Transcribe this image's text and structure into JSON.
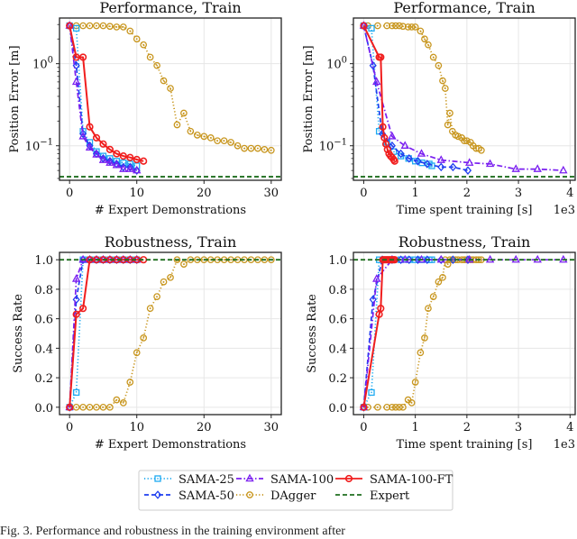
{
  "chart_data": [
    {
      "id": "perf_demos",
      "type": "line",
      "title": "Performance, Train",
      "xlabel": "# Expert Demonstrations",
      "ylabel": "Position Error [m]",
      "yscale": "log",
      "xlim": [
        -1.5,
        31.5
      ],
      "ylim": [
        0.038,
        3.6
      ],
      "xticks": [
        0,
        10,
        20,
        30
      ],
      "xtick_labels": [
        "0",
        "10",
        "20",
        "30"
      ],
      "yticks": [
        1,
        0.1
      ],
      "ytick_labels": [
        "10^0",
        "10^-1"
      ],
      "x_multiplier": "",
      "grid": true,
      "series": [
        {
          "name": "SAMA-25",
          "x": [
            0,
            1,
            2,
            3,
            4,
            5,
            6,
            7,
            8,
            9,
            10
          ],
          "y": [
            2.9,
            2.7,
            0.15,
            0.11,
            0.085,
            0.075,
            0.07,
            0.065,
            0.062,
            0.06,
            0.057
          ]
        },
        {
          "name": "SAMA-50",
          "x": [
            0,
            1,
            2,
            3,
            4,
            5,
            6,
            7,
            8,
            9,
            10
          ],
          "y": [
            2.9,
            0.95,
            0.14,
            0.1,
            0.08,
            0.07,
            0.065,
            0.06,
            0.055,
            0.055,
            0.05
          ]
        },
        {
          "name": "SAMA-100",
          "x": [
            0,
            1,
            2,
            3,
            4,
            5,
            6,
            7,
            8,
            9,
            10
          ],
          "y": [
            2.9,
            0.6,
            0.13,
            0.095,
            0.078,
            0.067,
            0.062,
            0.058,
            0.052,
            0.052,
            0.05
          ]
        },
        {
          "name": "DAgger",
          "x": [
            0,
            1,
            2,
            3,
            4,
            5,
            6,
            7,
            8,
            9,
            10,
            11,
            12,
            13,
            14,
            15,
            16,
            17,
            18,
            19,
            20,
            21,
            22,
            23,
            24,
            25,
            26,
            27,
            28,
            29,
            30
          ],
          "y": [
            2.9,
            2.9,
            2.9,
            2.9,
            2.9,
            2.9,
            2.85,
            2.8,
            2.8,
            2.5,
            2.0,
            1.7,
            1.2,
            0.95,
            0.62,
            0.5,
            0.18,
            0.25,
            0.15,
            0.135,
            0.13,
            0.125,
            0.115,
            0.115,
            0.11,
            0.1,
            0.093,
            0.093,
            0.093,
            0.09,
            0.088
          ]
        },
        {
          "name": "SAMA-100-FT",
          "x": [
            0,
            1,
            2,
            3,
            4,
            5,
            6,
            7,
            8,
            9,
            10,
            11
          ],
          "y": [
            2.9,
            1.2,
            1.2,
            0.17,
            0.125,
            0.105,
            0.09,
            0.08,
            0.075,
            0.072,
            0.068,
            0.065
          ]
        },
        {
          "name": "Expert",
          "constant": 0.042
        }
      ]
    },
    {
      "id": "perf_time",
      "type": "line",
      "title": "Performance, Train",
      "xlabel": "Time spent training [s]",
      "ylabel": "Position Error [m]",
      "yscale": "log",
      "xlim": [
        -0.2,
        4.1
      ],
      "ylim": [
        0.038,
        3.6
      ],
      "xticks": [
        0,
        1,
        2,
        3,
        4
      ],
      "xtick_labels": [
        "0",
        "1",
        "2",
        "3",
        "4"
      ],
      "yticks": [
        1,
        0.1
      ],
      "ytick_labels": [
        "10^0",
        "10^-1"
      ],
      "x_multiplier": "1e3",
      "grid": true,
      "series": [
        {
          "name": "SAMA-25",
          "x": [
            0,
            0.15,
            0.3,
            0.45,
            0.58,
            0.72,
            0.87,
            1.0,
            1.13,
            1.27,
            1.32
          ],
          "y": [
            2.9,
            2.7,
            0.15,
            0.11,
            0.085,
            0.075,
            0.07,
            0.065,
            0.062,
            0.06,
            0.057
          ]
        },
        {
          "name": "SAMA-50",
          "x": [
            0,
            0.18,
            0.36,
            0.55,
            0.72,
            0.88,
            1.05,
            1.23,
            1.5,
            1.73,
            2.02
          ],
          "y": [
            2.9,
            0.95,
            0.14,
            0.1,
            0.08,
            0.07,
            0.065,
            0.06,
            0.055,
            0.055,
            0.05
          ]
        },
        {
          "name": "SAMA-100",
          "x": [
            0,
            0.25,
            0.55,
            0.8,
            1.12,
            1.5,
            2.05,
            2.45,
            2.95,
            3.37,
            3.87
          ],
          "y": [
            2.9,
            0.6,
            0.13,
            0.1,
            0.08,
            0.067,
            0.062,
            0.06,
            0.052,
            0.052,
            0.05
          ]
        },
        {
          "name": "DAgger",
          "x": [
            0,
            0.08,
            0.27,
            0.45,
            0.55,
            0.62,
            0.69,
            0.76,
            0.86,
            0.93,
            1.0,
            1.1,
            1.18,
            1.25,
            1.35,
            1.45,
            1.53,
            1.58,
            1.63,
            1.67,
            1.72,
            1.78,
            1.83,
            1.9,
            1.95,
            2.0,
            2.07,
            2.12,
            2.18,
            2.23,
            2.28
          ],
          "y": [
            2.9,
            2.9,
            2.9,
            2.9,
            2.9,
            2.9,
            2.9,
            2.85,
            2.8,
            2.8,
            2.8,
            2.5,
            2.0,
            1.7,
            1.2,
            0.95,
            0.62,
            0.5,
            0.18,
            0.25,
            0.15,
            0.135,
            0.13,
            0.125,
            0.115,
            0.115,
            0.11,
            0.1,
            0.093,
            0.093,
            0.088
          ]
        },
        {
          "name": "SAMA-100-FT",
          "x": [
            0,
            0.3,
            0.33,
            0.37,
            0.4,
            0.43,
            0.46,
            0.49,
            0.52,
            0.55,
            0.58,
            0.6
          ],
          "y": [
            2.9,
            1.2,
            1.2,
            0.17,
            0.125,
            0.105,
            0.09,
            0.08,
            0.075,
            0.072,
            0.068,
            0.065
          ]
        },
        {
          "name": "Expert",
          "constant": 0.042
        }
      ]
    },
    {
      "id": "robust_demos",
      "type": "line",
      "title": "Robustness, Train",
      "xlabel": "# Expert Demonstrations",
      "ylabel": "Success Rate",
      "yscale": "linear",
      "xlim": [
        -1.5,
        31.5
      ],
      "ylim": [
        -0.05,
        1.05
      ],
      "xticks": [
        0,
        10,
        20,
        30
      ],
      "xtick_labels": [
        "0",
        "10",
        "20",
        "30"
      ],
      "yticks": [
        0.0,
        0.2,
        0.4,
        0.6,
        0.8,
        1.0
      ],
      "ytick_labels": [
        "0.0",
        "0.2",
        "0.4",
        "0.6",
        "0.8",
        "1.0"
      ],
      "x_multiplier": "",
      "grid": true,
      "series": [
        {
          "name": "SAMA-25",
          "x": [
            0,
            1,
            2,
            3,
            4,
            5,
            6,
            7,
            8,
            9,
            10
          ],
          "y": [
            0,
            0.1,
            1,
            1,
            1,
            1,
            1,
            1,
            1,
            1,
            1
          ]
        },
        {
          "name": "SAMA-50",
          "x": [
            0,
            1,
            2,
            3,
            4,
            5,
            6,
            7,
            8,
            9,
            10
          ],
          "y": [
            0,
            0.73,
            1,
            1,
            1,
            1,
            1,
            1,
            1,
            1,
            1
          ]
        },
        {
          "name": "SAMA-100",
          "x": [
            0,
            1,
            2,
            3,
            4,
            5,
            6,
            7,
            8,
            9,
            10
          ],
          "y": [
            0,
            0.87,
            1,
            1,
            1,
            1,
            1,
            1,
            1,
            1,
            1
          ]
        },
        {
          "name": "DAgger",
          "x": [
            0,
            1,
            2,
            3,
            4,
            5,
            6,
            7,
            8,
            9,
            10,
            11,
            12,
            13,
            14,
            15,
            16,
            17,
            18,
            19,
            20,
            21,
            22,
            23,
            24,
            25,
            26,
            27,
            28,
            29,
            30
          ],
          "y": [
            0,
            0,
            0,
            0,
            0,
            0,
            0,
            0.05,
            0.03,
            0.17,
            0.37,
            0.47,
            0.67,
            0.75,
            0.85,
            0.88,
            1,
            0.97,
            1,
            1,
            1,
            1,
            1,
            1,
            1,
            1,
            1,
            1,
            1,
            1,
            1
          ]
        },
        {
          "name": "SAMA-100-FT",
          "x": [
            0,
            1,
            2,
            3,
            4,
            5,
            6,
            7,
            8,
            9,
            10,
            11
          ],
          "y": [
            0,
            0.63,
            0.67,
            1,
            1,
            1,
            1,
            1,
            1,
            1,
            1,
            1
          ]
        },
        {
          "name": "Expert",
          "constant": 1.0
        }
      ]
    },
    {
      "id": "robust_time",
      "type": "line",
      "title": "Robustness, Train",
      "xlabel": "Time spent training [s]",
      "ylabel": "Success Rate",
      "yscale": "linear",
      "xlim": [
        -0.2,
        4.1
      ],
      "ylim": [
        -0.05,
        1.05
      ],
      "xticks": [
        0,
        1,
        2,
        3,
        4
      ],
      "xtick_labels": [
        "0",
        "1",
        "2",
        "3",
        "4"
      ],
      "yticks": [
        0.0,
        0.2,
        0.4,
        0.6,
        0.8,
        1.0
      ],
      "ytick_labels": [
        "0.0",
        "0.2",
        "0.4",
        "0.6",
        "0.8",
        "1.0"
      ],
      "x_multiplier": "1e3",
      "grid": true,
      "series": [
        {
          "name": "SAMA-25",
          "x": [
            0,
            0.15,
            0.3,
            0.45,
            0.58,
            0.72,
            0.87,
            1.0,
            1.13,
            1.27,
            1.32
          ],
          "y": [
            0,
            0.1,
            1,
            1,
            1,
            1,
            1,
            1,
            1,
            1,
            1
          ]
        },
        {
          "name": "SAMA-50",
          "x": [
            0,
            0.18,
            0.36,
            0.55,
            0.72,
            0.88,
            1.05,
            1.23,
            1.5,
            1.73,
            2.02
          ],
          "y": [
            0,
            0.73,
            1,
            1,
            1,
            1,
            1,
            1,
            1,
            1,
            1
          ]
        },
        {
          "name": "SAMA-100",
          "x": [
            0,
            0.25,
            0.55,
            0.8,
            1.12,
            1.5,
            2.05,
            2.45,
            2.95,
            3.37,
            3.87
          ],
          "y": [
            0,
            0.87,
            1,
            1,
            1,
            1,
            1,
            1,
            1,
            1,
            1
          ]
        },
        {
          "name": "DAgger",
          "x": [
            0,
            0.08,
            0.27,
            0.45,
            0.55,
            0.62,
            0.69,
            0.76,
            0.86,
            0.93,
            1.0,
            1.1,
            1.18,
            1.25,
            1.35,
            1.45,
            1.53,
            1.58,
            1.63,
            1.67,
            1.72,
            1.78,
            1.83,
            1.9,
            1.95,
            2.0,
            2.07,
            2.12,
            2.18,
            2.23,
            2.28
          ],
          "y": [
            0,
            0,
            0,
            0,
            0,
            0,
            0,
            0,
            0.05,
            0.03,
            0.17,
            0.37,
            0.47,
            0.67,
            0.75,
            0.85,
            0.88,
            1,
            0.97,
            1,
            1,
            1,
            1,
            1,
            1,
            1,
            1,
            1,
            1,
            1,
            1
          ]
        },
        {
          "name": "SAMA-100-FT",
          "x": [
            0,
            0.3,
            0.33,
            0.37,
            0.4,
            0.43,
            0.46,
            0.49,
            0.52,
            0.55,
            0.58,
            0.6
          ],
          "y": [
            0,
            0.63,
            0.67,
            1,
            1,
            1,
            1,
            1,
            1,
            1,
            1,
            1
          ]
        },
        {
          "name": "Expert",
          "constant": 1.0
        }
      ]
    }
  ],
  "legend": {
    "placement": "bottom-center",
    "entries": [
      {
        "name": "SAMA-25",
        "color": "#1EAAF1",
        "marker": "square",
        "linestyle": "dotted"
      },
      {
        "name": "SAMA-50",
        "color": "#1F3FF0",
        "marker": "diamond",
        "linestyle": "dashed"
      },
      {
        "name": "SAMA-100",
        "color": "#7A1FF0",
        "marker": "triangle",
        "linestyle": "dashdot"
      },
      {
        "name": "DAgger",
        "color": "#C8961E",
        "marker": "circle-dot",
        "linestyle": "dotted"
      },
      {
        "name": "SAMA-100-FT",
        "color": "#F01E1E",
        "marker": "circle",
        "linestyle": "solid"
      },
      {
        "name": "Expert",
        "color": "#1E6E1E",
        "marker": "none",
        "linestyle": "dashed"
      }
    ]
  },
  "caption": "Fig. 3.   Performance and robustness in the training environment after"
}
